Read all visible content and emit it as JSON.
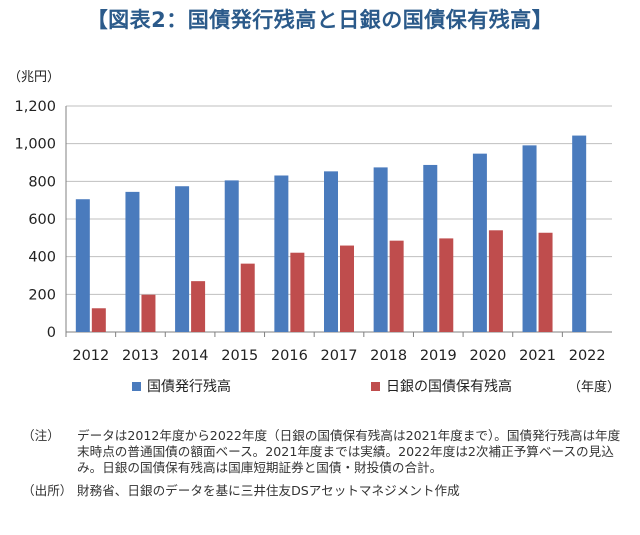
{
  "title": "【図表2：国債発行残高と日銀の国債保有残高】",
  "unit_label": "（兆円）",
  "year_unit": "（年度）",
  "legend": {
    "series1": "国債発行残高",
    "series2": "日銀の国債保有残高"
  },
  "colors": {
    "series1": "#4a7bbd",
    "series2": "#bf4d4d",
    "title": "#2b5a8a",
    "grid": "#bfbfbf"
  },
  "notes": {
    "note_label": "（注）",
    "note_text": "データは2012年度から2022年度（日銀の国債保有残高は2021年度まで）。国債発行残高は年度末時点の普通国債の額面ベース。2021年度までは実績。2022年度は2次補正予算ベースの見込み。日銀の国債保有残高は国庫短期証券と国債・財投債の合計。",
    "source_label": "（出所）",
    "source_text": "財務省、日銀のデータを基に三井住友DSアセットマネジメント作成"
  },
  "chart_data": {
    "type": "bar",
    "title": "国債発行残高と日銀の国債保有残高",
    "xlabel": "（年度）",
    "ylabel": "（兆円）",
    "ylim": [
      0,
      1200
    ],
    "yticks": [
      0,
      200,
      400,
      600,
      800,
      1000,
      1200
    ],
    "ytick_labels": [
      "0",
      "200",
      "400",
      "600",
      "800",
      "1,000",
      "1,200"
    ],
    "categories": [
      "2012",
      "2013",
      "2014",
      "2015",
      "2016",
      "2017",
      "2018",
      "2019",
      "2020",
      "2021",
      "2022"
    ],
    "series": [
      {
        "name": "国債発行残高",
        "values": [
          705,
          744,
          774,
          805,
          831,
          853,
          874,
          887,
          947,
          991,
          1043
        ]
      },
      {
        "name": "日銀の国債保有残高",
        "values": [
          126,
          198,
          270,
          363,
          421,
          459,
          485,
          497,
          540,
          527,
          null
        ]
      }
    ],
    "grid": true,
    "legend_position": "bottom"
  }
}
